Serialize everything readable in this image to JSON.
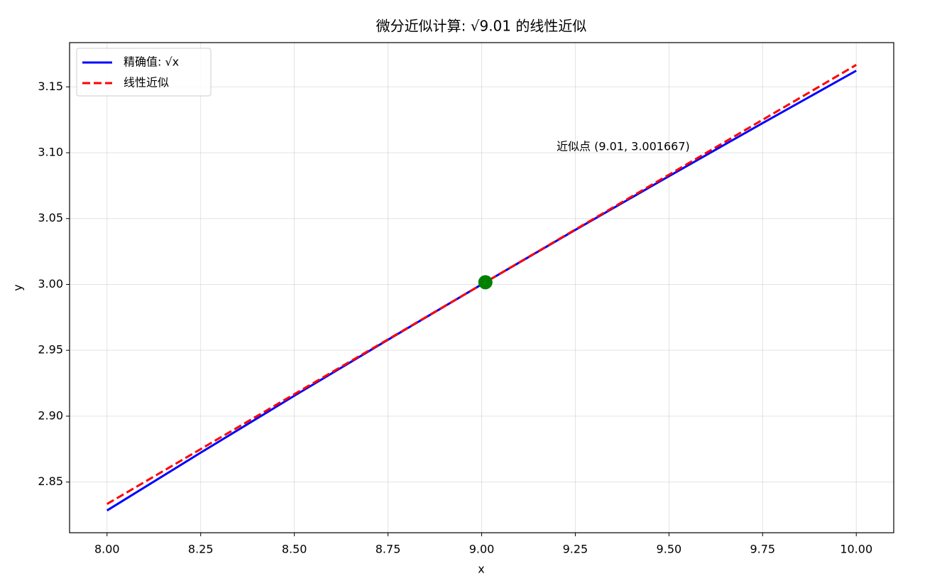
{
  "chart_data": {
    "type": "line",
    "title": "微分近似计算: √9.01 的线性近似",
    "xlabel": "x",
    "ylabel": "y",
    "x": [
      8.0,
      8.25,
      8.5,
      8.75,
      9.0,
      9.25,
      9.5,
      9.75,
      10.0
    ],
    "series": [
      {
        "name": "精确值: √x",
        "color": "#0000ff",
        "style": "solid",
        "values": [
          2.8284,
          2.8723,
          2.9155,
          2.958,
          3.0,
          3.0414,
          3.0822,
          3.1225,
          3.1623
        ]
      },
      {
        "name": "线性近似",
        "color": "#ff0000",
        "style": "dashed",
        "values": [
          2.8333,
          2.875,
          2.9167,
          2.9583,
          3.0,
          3.0417,
          3.0833,
          3.125,
          3.1667
        ]
      }
    ],
    "marker": {
      "x": 9.01,
      "y": 3.001667,
      "color": "#008000"
    },
    "annotation": {
      "text": "近似点 (9.01, 3.001667)",
      "x": 9.2,
      "y": 3.1
    },
    "xlim": [
      7.9,
      10.1
    ],
    "ylim": [
      2.8115,
      3.1836
    ],
    "xticks": [
      {
        "value": 8,
        "label": "8.00"
      },
      {
        "value": 8.25,
        "label": "8.25"
      },
      {
        "value": 8.5,
        "label": "8.50"
      },
      {
        "value": 8.75,
        "label": "8.75"
      },
      {
        "value": 9,
        "label": "9.00"
      },
      {
        "value": 9.25,
        "label": "9.25"
      },
      {
        "value": 9.5,
        "label": "9.50"
      },
      {
        "value": 9.75,
        "label": "9.75"
      },
      {
        "value": 10,
        "label": "10.00"
      }
    ],
    "yticks": [
      2.85,
      {
        "value": 2.9,
        "label": "2.90"
      },
      2.95,
      {
        "value": 3,
        "label": "3.00"
      },
      3.05,
      {
        "value": 3.1,
        "label": "3.10"
      },
      3.15
    ],
    "grid": true,
    "legend": "upper left"
  }
}
